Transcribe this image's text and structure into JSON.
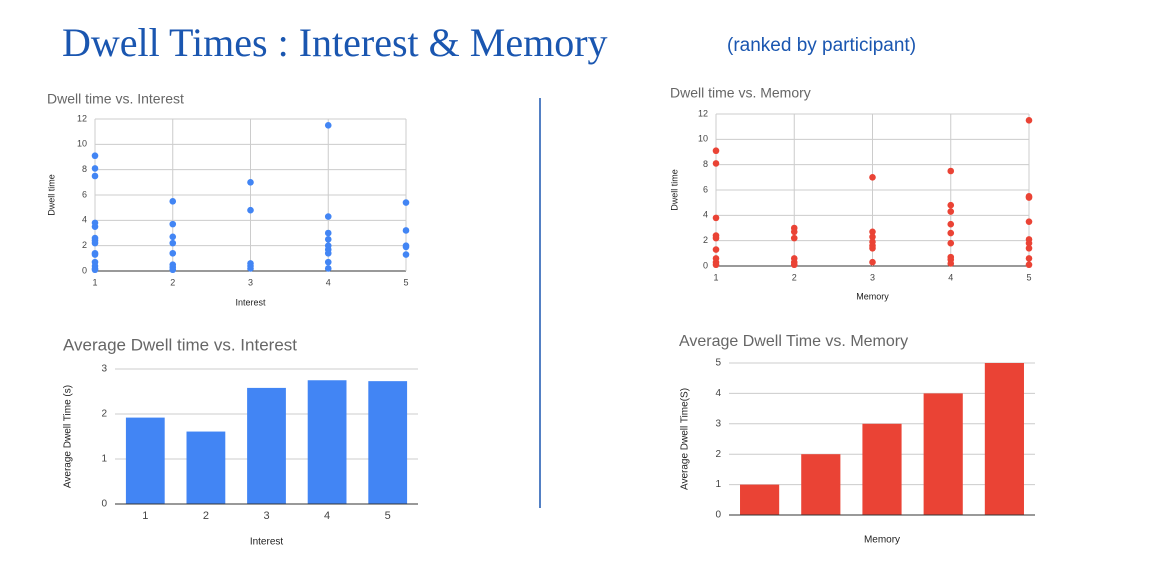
{
  "title": "Dwell Times : Interest & Memory",
  "subtitle": "(ranked by participant)",
  "chart_data": [
    {
      "type": "scatter",
      "title": "Dwell time vs. Interest",
      "x_label": "Interest",
      "y_label": "Dwell time",
      "color": "#4285f4",
      "grid": true,
      "x": [
        1,
        1,
        1,
        1,
        1,
        1,
        1,
        1,
        1,
        1,
        1,
        1,
        1,
        1,
        2,
        2,
        2,
        2,
        2,
        2,
        2,
        2,
        3,
        3,
        3,
        3,
        3,
        4,
        4,
        4,
        4,
        4,
        4,
        4,
        4,
        4,
        5,
        5,
        5,
        5,
        5
      ],
      "values": [
        9.1,
        8.1,
        7.5,
        3.8,
        3.5,
        2.6,
        2.4,
        2.2,
        1.4,
        1.3,
        0.7,
        0.4,
        0.2,
        0.1,
        5.5,
        3.7,
        2.7,
        2.2,
        1.4,
        0.5,
        0.3,
        0.1,
        7.0,
        4.8,
        0.6,
        0.4,
        0.2,
        11.5,
        4.3,
        3.0,
        2.5,
        2.0,
        1.7,
        1.4,
        0.7,
        0.2,
        5.4,
        3.2,
        2.0,
        1.9,
        1.3
      ],
      "xlim": [
        1,
        5
      ],
      "xticks": [
        1,
        2,
        3,
        4,
        5
      ],
      "ylim": [
        0,
        12
      ],
      "yticks": [
        0,
        2,
        4,
        6,
        8,
        10,
        12
      ]
    },
    {
      "type": "scatter",
      "title": "Dwell time vs. Memory",
      "x_label": "Memory",
      "y_label": "Dwell time",
      "color": "#ea4335",
      "grid": true,
      "x": [
        1,
        1,
        1,
        1,
        1,
        1,
        1,
        1,
        1,
        2,
        2,
        2,
        2,
        2,
        2,
        3,
        3,
        3,
        3,
        3,
        3,
        3,
        4,
        4,
        4,
        4,
        4,
        4,
        4,
        4,
        4,
        5,
        5,
        5,
        5,
        5,
        5,
        5,
        5,
        5
      ],
      "values": [
        9.1,
        8.1,
        3.8,
        2.4,
        2.2,
        1.3,
        0.6,
        0.3,
        0.1,
        3.0,
        2.7,
        2.2,
        0.6,
        0.3,
        0.1,
        7.0,
        2.7,
        2.3,
        1.9,
        1.6,
        1.4,
        0.3,
        7.5,
        4.8,
        4.3,
        3.3,
        2.6,
        1.8,
        0.7,
        0.5,
        0.2,
        11.5,
        5.5,
        5.4,
        3.5,
        2.1,
        1.8,
        1.4,
        0.6,
        0.1
      ],
      "xlim": [
        1,
        5
      ],
      "xticks": [
        1,
        2,
        3,
        4,
        5
      ],
      "ylim": [
        0,
        12
      ],
      "yticks": [
        0,
        2,
        4,
        6,
        8,
        10,
        12
      ]
    },
    {
      "type": "bar",
      "title": "Average Dwell time vs. Interest",
      "x_label": "Interest",
      "y_label": "Average Dwell Time (s)",
      "color": "#4285f4",
      "grid": true,
      "categories": [
        "1",
        "2",
        "3",
        "4",
        "5"
      ],
      "values": [
        1.92,
        1.61,
        2.58,
        2.75,
        2.73
      ],
      "ylim": [
        0,
        3
      ],
      "yticks": [
        0,
        1,
        2,
        3
      ]
    },
    {
      "type": "bar",
      "title": "Average Dwell Time vs. Memory",
      "x_label": "Memory",
      "y_label": "Average Dwell Time(S)",
      "color": "#ea4335",
      "grid": true,
      "categories": [
        null,
        null,
        null,
        null,
        null
      ],
      "values": [
        1,
        2,
        3,
        4,
        5
      ],
      "ylim": [
        0,
        5
      ],
      "yticks": [
        0,
        1,
        2,
        3,
        4,
        5
      ]
    }
  ]
}
